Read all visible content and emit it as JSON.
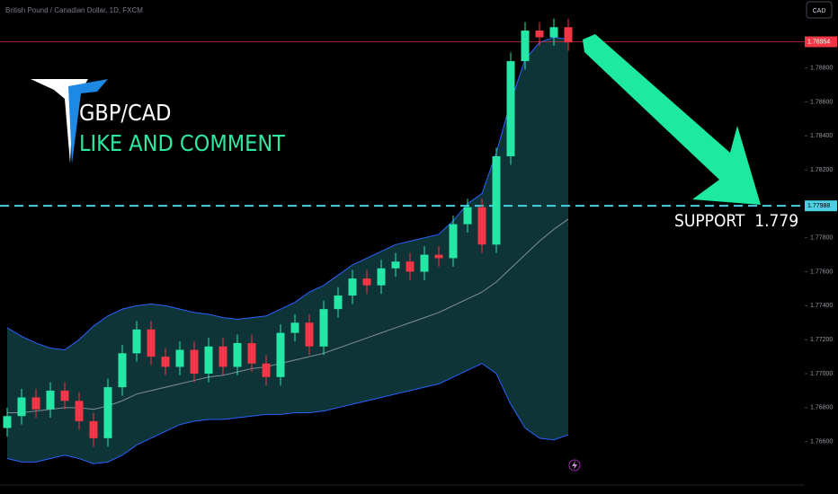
{
  "chart_data": {
    "type": "candlestick",
    "title": "British Pound / Canadian Dollar, 1D, FXCM",
    "currency": "CAD",
    "annotations": [
      "GBP/CAD",
      "LIKE AND COMMENT",
      "SUPPORT  1.779"
    ],
    "ylim": [
      1.7645,
      1.792
    ],
    "yticks": [
      {
        "value": 1.788,
        "label": "1.78800"
      },
      {
        "value": 1.786,
        "label": "1.78600"
      },
      {
        "value": 1.784,
        "label": "1.78400"
      },
      {
        "value": 1.782,
        "label": "1.78200"
      },
      {
        "value": 1.778,
        "label": "1.77800"
      },
      {
        "value": 1.776,
        "label": "1.77600"
      },
      {
        "value": 1.774,
        "label": "1.77400"
      },
      {
        "value": 1.772,
        "label": "1.77200"
      },
      {
        "value": 1.77,
        "label": "1.77000"
      },
      {
        "value": 1.768,
        "label": "1.76800"
      },
      {
        "value": 1.766,
        "label": "1.76600"
      }
    ],
    "price_lines": [
      {
        "value": 1.78954,
        "label": "1.78954",
        "color": "#f23645"
      },
      {
        "value": 1.77988,
        "label": "1.77988",
        "color": "#4dd0e1"
      }
    ],
    "up_color": "#26e8a6",
    "down_color": "#f23645",
    "open": [
      1.7668,
      1.7675,
      1.7686,
      1.7679,
      1.769,
      1.7684,
      1.7672,
      1.7662,
      1.7692,
      1.7712,
      1.7726,
      1.771,
      1.7704,
      1.7714,
      1.77,
      1.7716,
      1.7704,
      1.7718,
      1.7706,
      1.7698,
      1.7724,
      1.773,
      1.7716,
      1.7738,
      1.7746,
      1.7756,
      1.7752,
      1.7762,
      1.7766,
      1.776,
      1.777,
      1.7768,
      1.7788,
      1.7798,
      1.7776,
      1.7828,
      1.7884,
      1.7902,
      1.7898,
      1.7904
    ],
    "high": [
      1.768,
      1.7691,
      1.7691,
      1.7695,
      1.7695,
      1.7689,
      1.7677,
      1.7697,
      1.7717,
      1.7731,
      1.7731,
      1.7715,
      1.7719,
      1.7719,
      1.7721,
      1.7721,
      1.7723,
      1.7723,
      1.7711,
      1.7729,
      1.7735,
      1.7735,
      1.7743,
      1.7751,
      1.7761,
      1.7761,
      1.7767,
      1.7771,
      1.7771,
      1.7775,
      1.7775,
      1.7793,
      1.7803,
      1.7803,
      1.7833,
      1.7889,
      1.7907,
      1.7907,
      1.7909,
      1.7909
    ],
    "low": [
      1.7663,
      1.767,
      1.7674,
      1.7674,
      1.7679,
      1.7667,
      1.7657,
      1.7657,
      1.7687,
      1.7707,
      1.7705,
      1.7699,
      1.7699,
      1.7695,
      1.7695,
      1.7699,
      1.7699,
      1.7701,
      1.7693,
      1.7693,
      1.7719,
      1.7711,
      1.7711,
      1.7733,
      1.7741,
      1.7747,
      1.7747,
      1.7757,
      1.7755,
      1.7755,
      1.7763,
      1.7763,
      1.7783,
      1.7771,
      1.7771,
      1.7823,
      1.7879,
      1.7893,
      1.7893,
      1.789
    ],
    "close": [
      1.7675,
      1.7686,
      1.7679,
      1.769,
      1.7684,
      1.7672,
      1.7662,
      1.7692,
      1.7712,
      1.7726,
      1.771,
      1.7704,
      1.7714,
      1.77,
      1.7716,
      1.7704,
      1.7718,
      1.7706,
      1.7698,
      1.7724,
      1.773,
      1.7716,
      1.7738,
      1.7746,
      1.7756,
      1.7752,
      1.7762,
      1.7766,
      1.776,
      1.777,
      1.7768,
      1.7788,
      1.7798,
      1.7776,
      1.7828,
      1.7884,
      1.7902,
      1.7898,
      1.7904,
      1.7895
    ],
    "bands": {
      "upper": [
        1.7727,
        1.7722,
        1.7718,
        1.7715,
        1.7714,
        1.772,
        1.7728,
        1.7734,
        1.7738,
        1.774,
        1.7741,
        1.774,
        1.7738,
        1.7736,
        1.7735,
        1.7733,
        1.7732,
        1.7733,
        1.7734,
        1.7738,
        1.7742,
        1.7748,
        1.7752,
        1.7758,
        1.7764,
        1.7768,
        1.7772,
        1.7776,
        1.7778,
        1.778,
        1.7782,
        1.779,
        1.78,
        1.7806,
        1.783,
        1.786,
        1.7885,
        1.7895,
        1.7898,
        1.7897
      ],
      "middle": [
        1.7677,
        1.7677,
        1.7678,
        1.7679,
        1.768,
        1.768,
        1.7679,
        1.7681,
        1.7684,
        1.7688,
        1.769,
        1.7692,
        1.7694,
        1.7696,
        1.7698,
        1.7699,
        1.7701,
        1.7703,
        1.7704,
        1.7706,
        1.7708,
        1.771,
        1.7712,
        1.7715,
        1.7718,
        1.7721,
        1.7724,
        1.7727,
        1.773,
        1.7733,
        1.7736,
        1.774,
        1.7744,
        1.7748,
        1.7754,
        1.7762,
        1.777,
        1.7778,
        1.7785,
        1.7791
      ],
      "lower": [
        1.765,
        1.7648,
        1.7648,
        1.765,
        1.7652,
        1.765,
        1.7647,
        1.7648,
        1.7652,
        1.7658,
        1.7662,
        1.7666,
        1.767,
        1.7672,
        1.7673,
        1.7673,
        1.7674,
        1.7675,
        1.7676,
        1.7676,
        1.7677,
        1.7677,
        1.7678,
        1.768,
        1.7682,
        1.7684,
        1.7686,
        1.7688,
        1.769,
        1.7692,
        1.7694,
        1.7698,
        1.7702,
        1.7706,
        1.77,
        1.7682,
        1.7668,
        1.7662,
        1.7661,
        1.7664
      ]
    }
  }
}
